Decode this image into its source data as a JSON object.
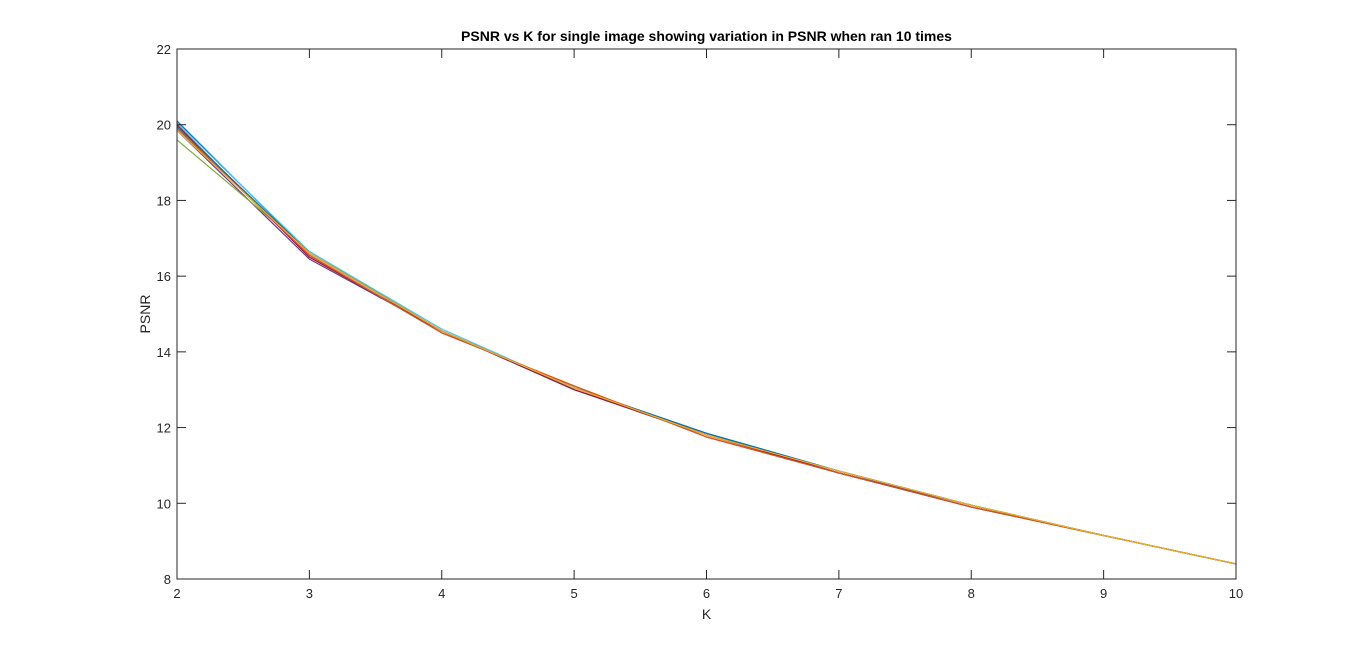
{
  "chart_data": {
    "type": "line",
    "title": "PSNR vs K for single image showing variation in PSNR when ran 10 times",
    "xlabel": "K",
    "ylabel": "PSNR",
    "xlim": [
      2,
      10
    ],
    "ylim": [
      8,
      22
    ],
    "xticks": [
      2,
      3,
      4,
      5,
      6,
      7,
      8,
      9,
      10
    ],
    "yticks": [
      8,
      10,
      12,
      14,
      16,
      18,
      20,
      22
    ],
    "x": [
      2,
      3,
      4,
      5,
      6,
      7,
      8,
      9,
      10
    ],
    "grid": false,
    "legend": "none",
    "series": [
      {
        "color": "#0072BD",
        "values": [
          20.1,
          16.6,
          14.55,
          13.05,
          11.85,
          10.85,
          9.95,
          9.15,
          8.4
        ]
      },
      {
        "color": "#D95319",
        "values": [
          19.95,
          16.55,
          14.5,
          13.1,
          11.75,
          10.8,
          9.9,
          9.15,
          8.4
        ]
      },
      {
        "color": "#EDB120",
        "values": [
          19.9,
          16.6,
          14.55,
          13.05,
          11.8,
          10.85,
          9.95,
          9.15,
          8.4
        ]
      },
      {
        "color": "#7E2F8E",
        "values": [
          19.85,
          16.45,
          14.55,
          13.0,
          11.85,
          10.8,
          9.95,
          9.15,
          8.4
        ]
      },
      {
        "color": "#77AC30",
        "values": [
          19.6,
          16.65,
          14.55,
          13.05,
          11.85,
          10.85,
          9.95,
          9.15,
          8.4
        ]
      },
      {
        "color": "#4DBEEE",
        "values": [
          20.05,
          16.65,
          14.6,
          13.05,
          11.85,
          10.85,
          9.95,
          9.15,
          8.4
        ]
      },
      {
        "color": "#A2142F",
        "values": [
          20.0,
          16.5,
          14.55,
          13.0,
          11.8,
          10.8,
          9.9,
          9.15,
          8.4
        ]
      },
      {
        "color": "#0072BD",
        "values": [
          19.95,
          16.6,
          14.55,
          13.05,
          11.85,
          10.85,
          9.95,
          9.15,
          8.4
        ]
      },
      {
        "color": "#D95319",
        "values": [
          19.9,
          16.55,
          14.5,
          13.1,
          11.75,
          10.8,
          9.9,
          9.15,
          8.4
        ]
      },
      {
        "color": "#EDB120",
        "values": [
          19.85,
          16.6,
          14.55,
          13.05,
          11.8,
          10.85,
          9.95,
          9.15,
          8.4
        ]
      }
    ]
  }
}
